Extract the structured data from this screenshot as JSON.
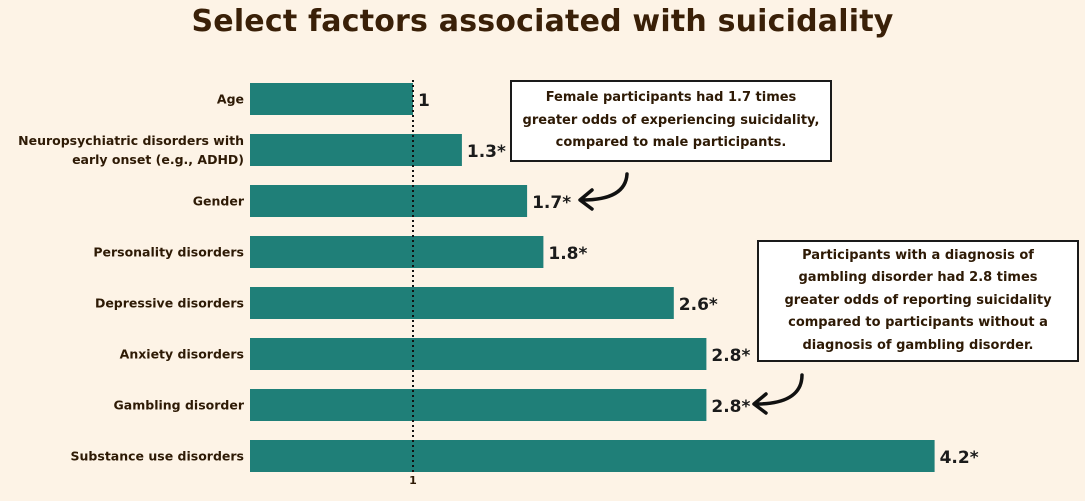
{
  "chart_data": {
    "type": "bar",
    "orientation": "horizontal",
    "title": "Select factors associated with suicidality",
    "categories": [
      "Age",
      "Neuropsychiatric disorders with early onset (e.g., ADHD)",
      "Gender",
      "Personality disorders",
      "Depressive disorders",
      "Anxiety disorders",
      "Gambling disorder",
      "Substance use disorders"
    ],
    "values": [
      1,
      1.3,
      1.7,
      1.8,
      2.6,
      2.8,
      2.8,
      4.2
    ],
    "value_labels": [
      "1",
      "1.3*",
      "1.7*",
      "1.8*",
      "2.6*",
      "2.8*",
      "2.8*",
      "4.2*"
    ],
    "reference_line": 1,
    "reference_tick_label": "1",
    "bar_color": "#1f7f78",
    "annotations": [
      {
        "text": "Female participants had 1.7 times greater odds of experiencing suicidality, compared to male participants.",
        "points_to": "Gender"
      },
      {
        "text": "Participants with a diagnosis of gambling disorder had 2.8 times greater odds of reporting suicidality compared to participants without a diagnosis of gambling disorder.",
        "points_to": "Gambling disorder"
      }
    ]
  }
}
